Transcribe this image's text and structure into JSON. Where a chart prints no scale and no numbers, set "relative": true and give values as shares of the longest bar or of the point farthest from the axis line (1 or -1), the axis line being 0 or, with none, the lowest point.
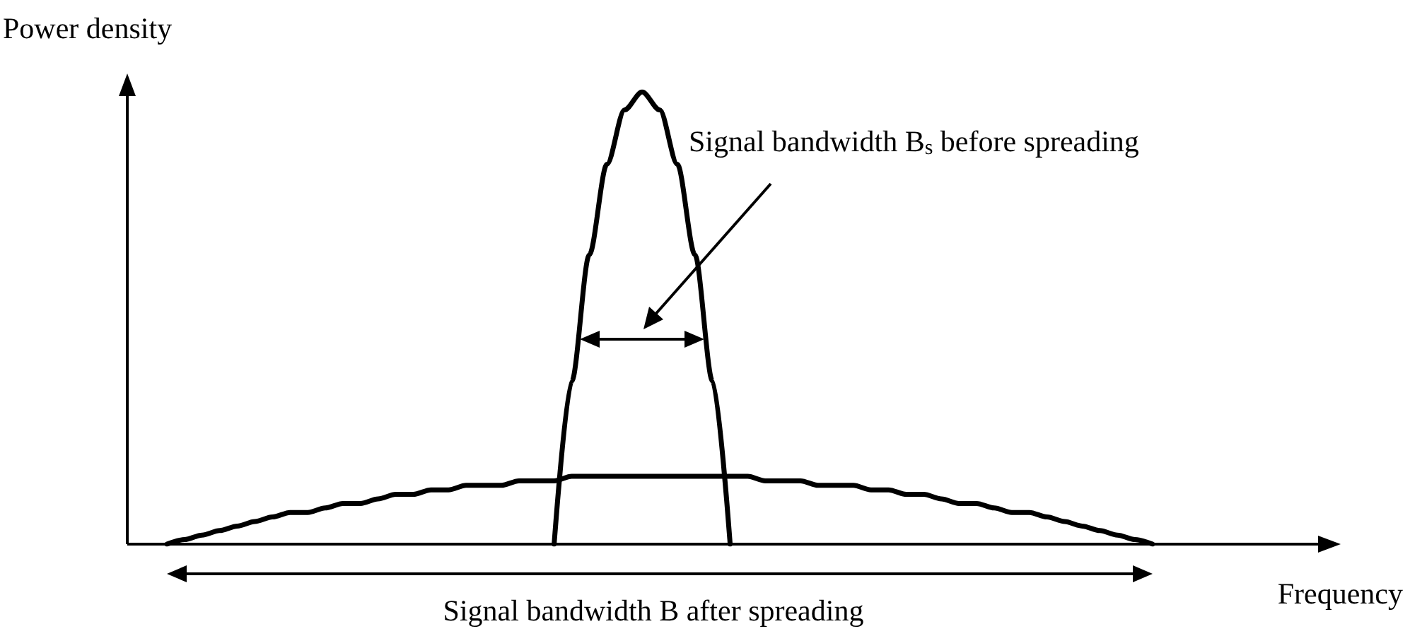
{
  "chart_data": {
    "type": "line",
    "relative": true,
    "xlabel": "Frequency",
    "ylabel": "Power density",
    "grid": false,
    "marker": "none",
    "line_style": "solid",
    "categories": [
      null,
      null,
      null,
      null,
      null,
      null,
      null,
      null,
      null,
      null,
      null,
      null,
      null,
      null,
      null,
      null,
      null,
      null,
      null,
      null,
      null,
      null,
      null,
      null,
      null,
      null,
      null,
      null,
      null,
      null,
      null,
      null,
      null,
      null,
      null,
      null,
      null,
      null,
      null,
      null,
      null,
      null,
      null,
      null,
      null,
      null,
      null,
      null,
      null,
      null,
      null,
      null,
      null,
      null,
      null,
      null,
      null
    ],
    "series": [
      {
        "color": "#000000",
        "values": [
          0,
          0.01,
          0.02,
          0.03,
          0.04,
          0.05,
          0.06,
          0.07,
          0.07,
          0.08,
          0.09,
          0.09,
          0.1,
          0.11,
          0.11,
          0.12,
          0.12,
          0.13,
          0.13,
          0.13,
          0.14,
          0.14,
          0.14,
          0.15,
          0.15,
          0.15,
          0.15,
          0.15,
          0.15,
          0.15,
          0.15,
          0.15,
          0.15,
          0.15,
          0.14,
          0.14,
          0.14,
          0.13,
          0.13,
          0.13,
          0.12,
          0.12,
          0.11,
          0.11,
          0.1,
          0.09,
          0.09,
          0.08,
          0.07,
          0.07,
          0.06,
          0.05,
          0.04,
          0.03,
          0.02,
          0.01,
          0
        ]
      },
      {
        "color": "#000000",
        "values": [
          null,
          null,
          null,
          null,
          null,
          null,
          null,
          null,
          null,
          null,
          null,
          null,
          null,
          null,
          null,
          null,
          null,
          null,
          null,
          null,
          null,
          null,
          0,
          0.36,
          0.64,
          0.84,
          0.96,
          1,
          0.96,
          0.84,
          0.64,
          0.36,
          0,
          null,
          null,
          null,
          null,
          null,
          null,
          null,
          null,
          null,
          null,
          null,
          null,
          null,
          null,
          null,
          null,
          null,
          null,
          null,
          null,
          null,
          null,
          null,
          null
        ]
      }
    ],
    "annotations": [
      "Signal bandwidth B$_{s}$ before spreading",
      "Signal bandwidth B after spreading"
    ]
  }
}
